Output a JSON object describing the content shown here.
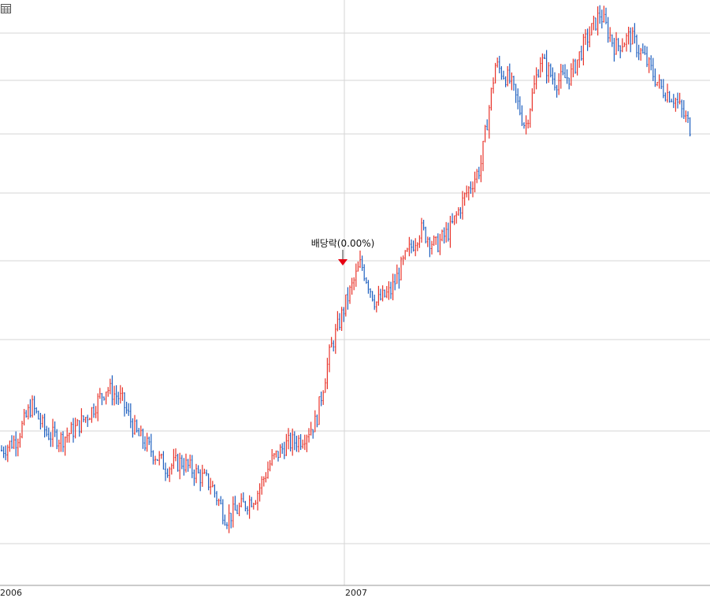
{
  "colors": {
    "up": "#e8332a",
    "down": "#1d5fbf",
    "grid": "#d6d6d6",
    "marker": "#e60012"
  },
  "toolbar": {
    "icon": "table-grid-icon"
  },
  "chart_data": {
    "type": "line",
    "subtype": "ohlc-bars",
    "title": "",
    "xlabel": "",
    "ylabel": "",
    "x_tick_labels": [
      "2006",
      "2007"
    ],
    "grid": "horizontal lines on, single vertical line at 2007",
    "annotations": [
      {
        "text": "배당락(0.00%)",
        "x": "2007-01"
      }
    ],
    "ylim": [
      0,
      100
    ],
    "series": [
      {
        "x": [
          "2006-01",
          "2006-01",
          "2006-02",
          "2006-02",
          "2006-03",
          "2006-03",
          "2006-04",
          "2006-04",
          "2006-05",
          "2006-05",
          "2006-06",
          "2006-06",
          "2006-07",
          "2006-07",
          "2006-08",
          "2006-08",
          "2006-09",
          "2006-09",
          "2006-10",
          "2006-10",
          "2006-11",
          "2006-11",
          "2006-12",
          "2006-12",
          "2007-01",
          "2007-01",
          "2007-02",
          "2007-02",
          "2007-03",
          "2007-03",
          "2007-04",
          "2007-04",
          "2007-05",
          "2007-05",
          "2007-06",
          "2007-06",
          "2007-07",
          "2007-07",
          "2007-08",
          "2007-08",
          "2007-09",
          "2007-09",
          "2007-10",
          "2007-10",
          "2007-11",
          "2007-11",
          "2007-12"
        ],
        "values": [
          22,
          24,
          30,
          25,
          24,
          26,
          29,
          33,
          31,
          25,
          22,
          19,
          20,
          18,
          16,
          10,
          12,
          14,
          20,
          23,
          24,
          27,
          40,
          48,
          55,
          48,
          50,
          56,
          61,
          58,
          61,
          67,
          72,
          90,
          87,
          79,
          91,
          87,
          88,
          94,
          99,
          93,
          95,
          91,
          86,
          84,
          79
        ]
      }
    ]
  }
}
